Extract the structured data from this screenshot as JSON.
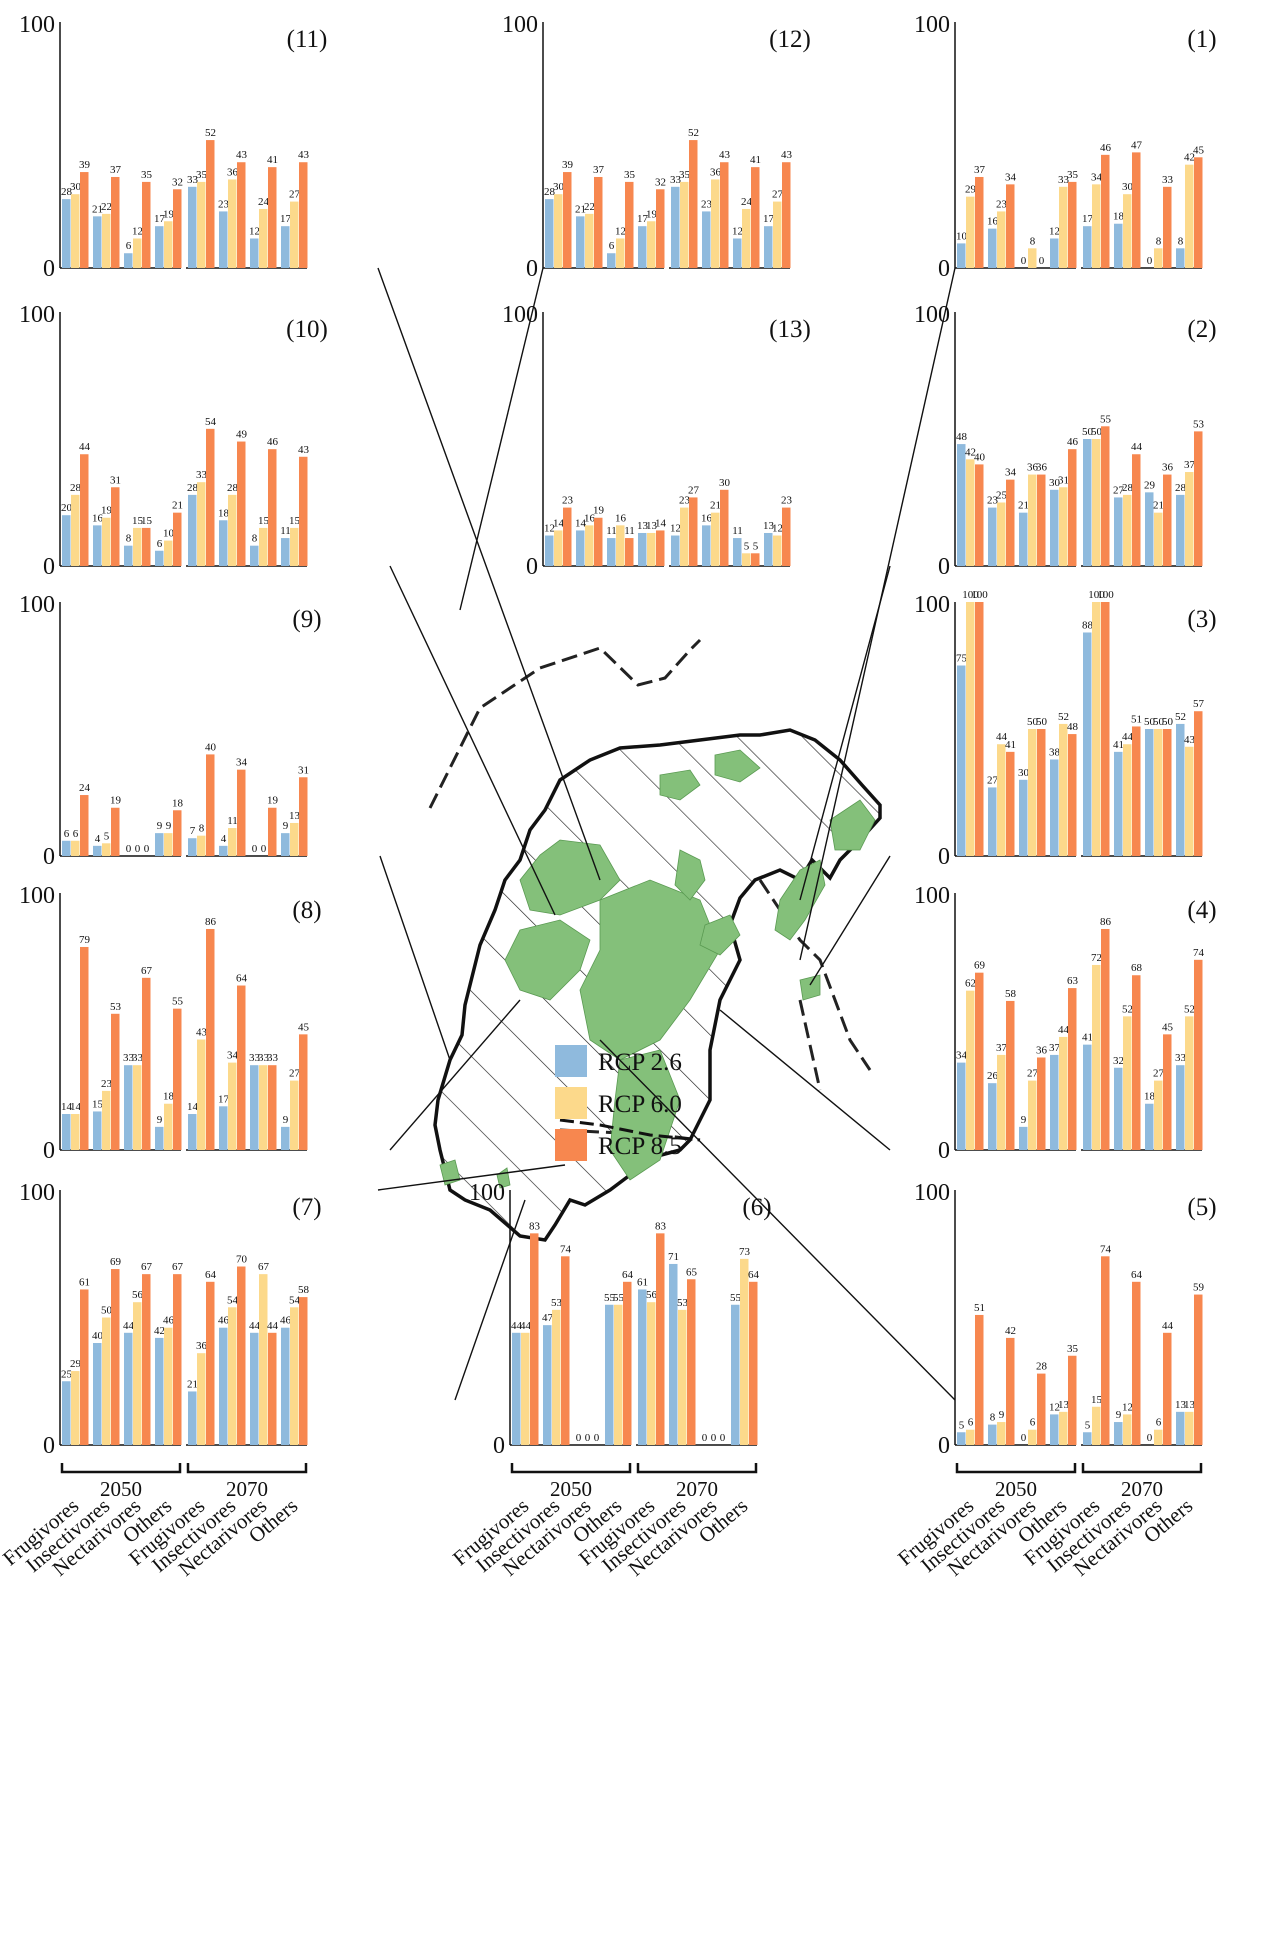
{
  "colors": {
    "RCP 2.6": "#8fbadd",
    "RCP 6.0": "#fcd98b",
    "RCP 8.5": "#f7874f"
  },
  "legend": [
    "RCP 2.6",
    "RCP 6.0",
    "RCP 8.5"
  ],
  "axis": {
    "ymin_label": "0",
    "ymax_label": "100"
  },
  "year_labels": [
    "2050",
    "2070"
  ],
  "category_labels": [
    "Frugivores",
    "Insectivores",
    "Nectarivores",
    "Others"
  ],
  "chart_data": [
    {
      "type": "bar",
      "title": "(11)",
      "groups": [
        "2050",
        "2070"
      ],
      "categories": [
        "Frugivores",
        "Insectivores",
        "Nectarivores",
        "Others"
      ],
      "ylim": [
        0,
        100
      ],
      "series": [
        {
          "name": "RCP 2.6",
          "values": [
            [
              28,
              21,
              6,
              17
            ],
            [
              33,
              23,
              12,
              17
            ]
          ]
        },
        {
          "name": "RCP 6.0",
          "values": [
            [
              30,
              22,
              12,
              19
            ],
            [
              35,
              36,
              24,
              27
            ]
          ]
        },
        {
          "name": "RCP 8.5",
          "values": [
            [
              39,
              37,
              35,
              32
            ],
            [
              52,
              43,
              41,
              43
            ]
          ]
        }
      ]
    },
    {
      "type": "bar",
      "title": "(12)",
      "groups": [
        "2050",
        "2070"
      ],
      "categories": [
        "Frugivores",
        "Insectivores",
        "Nectarivores",
        "Others"
      ],
      "ylim": [
        0,
        100
      ],
      "series": [
        {
          "name": "RCP 2.6",
          "values": [
            [
              28,
              21,
              6,
              17
            ],
            [
              33,
              23,
              12,
              17
            ]
          ]
        },
        {
          "name": "RCP 6.0",
          "values": [
            [
              30,
              22,
              12,
              19
            ],
            [
              35,
              36,
              24,
              27
            ]
          ]
        },
        {
          "name": "RCP 8.5",
          "values": [
            [
              39,
              37,
              35,
              32
            ],
            [
              52,
              43,
              41,
              43
            ]
          ]
        }
      ]
    },
    {
      "type": "bar",
      "title": "(1)",
      "groups": [
        "2050",
        "2070"
      ],
      "categories": [
        "Frugivores",
        "Insectivores",
        "Nectarivores",
        "Others"
      ],
      "ylim": [
        0,
        100
      ],
      "series": [
        {
          "name": "RCP 2.6",
          "values": [
            [
              10,
              16,
              0,
              12
            ],
            [
              17,
              18,
              0,
              8
            ]
          ]
        },
        {
          "name": "RCP 6.0",
          "values": [
            [
              29,
              23,
              8,
              33
            ],
            [
              34,
              30,
              8,
              42
            ]
          ]
        },
        {
          "name": "RCP 8.5",
          "values": [
            [
              37,
              34,
              0,
              35
            ],
            [
              46,
              47,
              33,
              45
            ]
          ]
        }
      ]
    },
    {
      "type": "bar",
      "title": "(10)",
      "groups": [
        "2050",
        "2070"
      ],
      "categories": [
        "Frugivores",
        "Insectivores",
        "Nectarivores",
        "Others"
      ],
      "ylim": [
        0,
        100
      ],
      "series": [
        {
          "name": "RCP 2.6",
          "values": [
            [
              20,
              16,
              8,
              6
            ],
            [
              28,
              18,
              8,
              11
            ]
          ]
        },
        {
          "name": "RCP 6.0",
          "values": [
            [
              28,
              19,
              15,
              10
            ],
            [
              33,
              28,
              15,
              15
            ]
          ]
        },
        {
          "name": "RCP 8.5",
          "values": [
            [
              44,
              31,
              15,
              21
            ],
            [
              54,
              49,
              46,
              43
            ]
          ]
        }
      ]
    },
    {
      "type": "bar",
      "title": "(13)",
      "groups": [
        "2050",
        "2070"
      ],
      "categories": [
        "Frugivores",
        "Insectivores",
        "Nectarivores",
        "Others"
      ],
      "ylim": [
        0,
        100
      ],
      "series": [
        {
          "name": "RCP 2.6",
          "values": [
            [
              12,
              14,
              11,
              13
            ],
            [
              12,
              16,
              11,
              13
            ]
          ]
        },
        {
          "name": "RCP 6.0",
          "values": [
            [
              14,
              16,
              16,
              13
            ],
            [
              23,
              21,
              5,
              12
            ]
          ]
        },
        {
          "name": "RCP 8.5",
          "values": [
            [
              23,
              19,
              11,
              14
            ],
            [
              27,
              30,
              5,
              23
            ]
          ]
        }
      ]
    },
    {
      "type": "bar",
      "title": "(2)",
      "groups": [
        "2050",
        "2070"
      ],
      "categories": [
        "Frugivores",
        "Insectivores",
        "Nectarivores",
        "Others"
      ],
      "ylim": [
        0,
        100
      ],
      "series": [
        {
          "name": "RCP 2.6",
          "values": [
            [
              48,
              23,
              21,
              30
            ],
            [
              50,
              27,
              29,
              28
            ]
          ]
        },
        {
          "name": "RCP 6.0",
          "values": [
            [
              42,
              25,
              36,
              31
            ],
            [
              50,
              28,
              21,
              37
            ]
          ]
        },
        {
          "name": "RCP 8.5",
          "values": [
            [
              40,
              34,
              36,
              46
            ],
            [
              55,
              44,
              36,
              53
            ]
          ]
        }
      ]
    },
    {
      "type": "bar",
      "title": "(9)",
      "groups": [
        "2050",
        "2070"
      ],
      "categories": [
        "Frugivores",
        "Insectivores",
        "Nectarivores",
        "Others"
      ],
      "ylim": [
        0,
        100
      ],
      "series": [
        {
          "name": "RCP 2.6",
          "values": [
            [
              6,
              4,
              0,
              9
            ],
            [
              7,
              4,
              0,
              9
            ]
          ]
        },
        {
          "name": "RCP 6.0",
          "values": [
            [
              6,
              5,
              0,
              9
            ],
            [
              8,
              11,
              0,
              13
            ]
          ]
        },
        {
          "name": "RCP 8.5",
          "values": [
            [
              24,
              19,
              0,
              18
            ],
            [
              40,
              34,
              19,
              31
            ]
          ]
        }
      ]
    },
    {
      "type": "bar",
      "title": "(3)",
      "groups": [
        "2050",
        "2070"
      ],
      "categories": [
        "Frugivores",
        "Insectivores",
        "Nectarivores",
        "Others"
      ],
      "ylim": [
        0,
        100
      ],
      "series": [
        {
          "name": "RCP 2.6",
          "values": [
            [
              75,
              27,
              30,
              38
            ],
            [
              88,
              41,
              50,
              52
            ]
          ]
        },
        {
          "name": "RCP 6.0",
          "values": [
            [
              100,
              44,
              50,
              52
            ],
            [
              100,
              44,
              50,
              43
            ]
          ]
        },
        {
          "name": "RCP 8.5",
          "values": [
            [
              100,
              41,
              50,
              48
            ],
            [
              100,
              51,
              50,
              57
            ]
          ]
        }
      ]
    },
    {
      "type": "bar",
      "title": "(8)",
      "groups": [
        "2050",
        "2070"
      ],
      "categories": [
        "Frugivores",
        "Insectivores",
        "Nectarivores",
        "Others"
      ],
      "ylim": [
        0,
        100
      ],
      "series": [
        {
          "name": "RCP 2.6",
          "values": [
            [
              14,
              15,
              33,
              9
            ],
            [
              14,
              17,
              33,
              9
            ]
          ]
        },
        {
          "name": "RCP 6.0",
          "values": [
            [
              14,
              23,
              33,
              18
            ],
            [
              43,
              34,
              33,
              27
            ]
          ]
        },
        {
          "name": "RCP 8.5",
          "values": [
            [
              79,
              53,
              67,
              55
            ],
            [
              86,
              64,
              33,
              45
            ]
          ]
        }
      ]
    },
    {
      "type": "bar",
      "title": "(4)",
      "groups": [
        "2050",
        "2070"
      ],
      "categories": [
        "Frugivores",
        "Insectivores",
        "Nectarivores",
        "Others"
      ],
      "ylim": [
        0,
        100
      ],
      "series": [
        {
          "name": "RCP 2.6",
          "values": [
            [
              34,
              26,
              9,
              37
            ],
            [
              41,
              32,
              18,
              33
            ]
          ]
        },
        {
          "name": "RCP 6.0",
          "values": [
            [
              62,
              37,
              27,
              44
            ],
            [
              72,
              52,
              27,
              52
            ]
          ]
        },
        {
          "name": "RCP 8.5",
          "values": [
            [
              69,
              58,
              36,
              63
            ],
            [
              86,
              68,
              45,
              74
            ]
          ]
        }
      ]
    },
    {
      "type": "bar",
      "title": "(7)",
      "groups": [
        "2050",
        "2070"
      ],
      "categories": [
        "Frugivores",
        "Insectivores",
        "Nectarivores",
        "Others"
      ],
      "ylim": [
        0,
        100
      ],
      "series": [
        {
          "name": "RCP 2.6",
          "values": [
            [
              25,
              40,
              44,
              42
            ],
            [
              21,
              46,
              44,
              46
            ]
          ]
        },
        {
          "name": "RCP 6.0",
          "values": [
            [
              29,
              50,
              56,
              46
            ],
            [
              36,
              54,
              67,
              54
            ]
          ]
        },
        {
          "name": "RCP 8.5",
          "values": [
            [
              61,
              69,
              67,
              67
            ],
            [
              64,
              70,
              44,
              58
            ]
          ]
        }
      ]
    },
    {
      "type": "bar",
      "title": "(6)",
      "groups": [
        "2050",
        "2070"
      ],
      "categories": [
        "Frugivores",
        "Insectivores",
        "Nectarivores",
        "Others"
      ],
      "ylim": [
        0,
        100
      ],
      "series": [
        {
          "name": "RCP 2.6",
          "values": [
            [
              44,
              47,
              0,
              55
            ],
            [
              61,
              71,
              0,
              55
            ]
          ]
        },
        {
          "name": "RCP 6.0",
          "values": [
            [
              44,
              53,
              0,
              55
            ],
            [
              56,
              53,
              0,
              73
            ]
          ]
        },
        {
          "name": "RCP 8.5",
          "values": [
            [
              83,
              74,
              0,
              64
            ],
            [
              83,
              65,
              0,
              64
            ]
          ]
        }
      ]
    },
    {
      "type": "bar",
      "title": "(5)",
      "groups": [
        "2050",
        "2070"
      ],
      "categories": [
        "Frugivores",
        "Insectivores",
        "Nectarivores",
        "Others"
      ],
      "ylim": [
        0,
        100
      ],
      "series": [
        {
          "name": "RCP 2.6",
          "values": [
            [
              5,
              8,
              0,
              12
            ],
            [
              5,
              9,
              0,
              13
            ]
          ]
        },
        {
          "name": "RCP 6.0",
          "values": [
            [
              6,
              9,
              6,
              13
            ],
            [
              15,
              12,
              6,
              13
            ]
          ]
        },
        {
          "name": "RCP 8.5",
          "values": [
            [
              51,
              42,
              28,
              35
            ],
            [
              74,
              64,
              44,
              59
            ]
          ]
        }
      ]
    }
  ]
}
